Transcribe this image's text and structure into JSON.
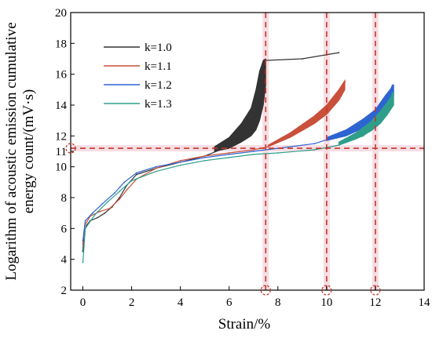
{
  "chart_data": {
    "type": "line",
    "title": "",
    "xlabel": "Strain/%",
    "ylabel_line1": "Logarithm of acoustic emission cumulative",
    "ylabel_line2": "energy count/(mV·s)",
    "xlim": [
      -0.5,
      14
    ],
    "ylim": [
      2,
      20
    ],
    "xticks": [
      0,
      2,
      4,
      6,
      8,
      10,
      12,
      14
    ],
    "yticks": [
      2,
      4,
      6,
      8,
      10,
      12,
      14,
      16,
      18,
      20
    ],
    "yticks_extra": [
      11
    ],
    "legend_position": "top-left",
    "series": [
      {
        "name": "k=1.0",
        "color": "#333333",
        "points": [
          [
            0.0,
            4.5
          ],
          [
            0.05,
            5.8
          ],
          [
            0.15,
            6.2
          ],
          [
            0.3,
            6.5
          ],
          [
            0.6,
            6.7
          ],
          [
            0.9,
            7.0
          ],
          [
            1.2,
            7.4
          ],
          [
            1.5,
            8.0
          ],
          [
            1.8,
            8.8
          ],
          [
            2.2,
            9.5
          ],
          [
            3.0,
            9.9
          ],
          [
            4.0,
            10.3
          ],
          [
            5.0,
            10.7
          ],
          [
            5.8,
            11.2
          ],
          [
            6.4,
            11.8
          ],
          [
            6.9,
            12.6
          ],
          [
            7.1,
            13.3
          ],
          [
            7.25,
            14.3
          ],
          [
            7.4,
            15.3
          ],
          [
            7.45,
            16.2
          ],
          [
            7.5,
            16.9
          ],
          [
            9.0,
            17.0
          ],
          [
            10.5,
            17.4
          ]
        ],
        "band": [
          [
            5.4,
            11.0,
            11.3
          ],
          [
            6.0,
            11.2,
            11.9
          ],
          [
            6.5,
            11.6,
            12.8
          ],
          [
            6.9,
            12.0,
            13.8
          ],
          [
            7.1,
            12.4,
            15.0
          ],
          [
            7.25,
            13.0,
            16.2
          ],
          [
            7.4,
            14.0,
            16.9
          ],
          [
            7.5,
            15.3,
            17.0
          ]
        ]
      },
      {
        "name": "k=1.1",
        "color": "#c9503a",
        "points": [
          [
            0.0,
            5.0
          ],
          [
            0.08,
            6.2
          ],
          [
            0.3,
            6.8
          ],
          [
            0.7,
            7.1
          ],
          [
            1.1,
            7.3
          ],
          [
            1.5,
            7.9
          ],
          [
            1.8,
            8.5
          ],
          [
            2.2,
            9.2
          ],
          [
            3.0,
            9.9
          ],
          [
            4.0,
            10.4
          ],
          [
            5.0,
            10.7
          ],
          [
            6.0,
            10.9
          ],
          [
            7.0,
            11.1
          ],
          [
            7.6,
            11.3
          ],
          [
            8.5,
            12.0
          ],
          [
            9.5,
            13.0
          ],
          [
            10.0,
            13.6
          ],
          [
            10.5,
            14.6
          ],
          [
            10.75,
            15.5
          ]
        ],
        "band": [
          [
            7.6,
            11.3,
            11.4
          ],
          [
            8.5,
            11.9,
            12.2
          ],
          [
            9.5,
            12.8,
            13.3
          ],
          [
            10.0,
            13.4,
            14.0
          ],
          [
            10.5,
            14.3,
            15.0
          ],
          [
            10.75,
            15.0,
            15.6
          ]
        ]
      },
      {
        "name": "k=1.2",
        "color": "#2d64d2",
        "points": [
          [
            0.0,
            5.2
          ],
          [
            0.1,
            6.5
          ],
          [
            0.4,
            7.0
          ],
          [
            0.8,
            7.6
          ],
          [
            1.3,
            8.3
          ],
          [
            1.7,
            9.0
          ],
          [
            2.2,
            9.6
          ],
          [
            3.0,
            10.0
          ],
          [
            4.0,
            10.3
          ],
          [
            5.0,
            10.6
          ],
          [
            6.0,
            10.8
          ],
          [
            7.0,
            11.0
          ],
          [
            8.0,
            11.2
          ],
          [
            9.5,
            11.5
          ],
          [
            10.5,
            12.0
          ],
          [
            11.5,
            12.8
          ],
          [
            12.0,
            13.3
          ],
          [
            12.4,
            14.2
          ],
          [
            12.7,
            15.3
          ]
        ],
        "band": [
          [
            10.0,
            11.7,
            11.9
          ],
          [
            10.8,
            12.0,
            12.4
          ],
          [
            11.5,
            12.5,
            13.1
          ],
          [
            12.0,
            13.0,
            13.7
          ],
          [
            12.4,
            13.8,
            14.6
          ],
          [
            12.75,
            14.6,
            15.3
          ]
        ]
      },
      {
        "name": "k=1.3",
        "color": "#2e9e8a",
        "points": [
          [
            0.0,
            3.8
          ],
          [
            0.1,
            6.0
          ],
          [
            0.5,
            6.9
          ],
          [
            1.0,
            7.7
          ],
          [
            1.5,
            8.4
          ],
          [
            2.0,
            9.1
          ],
          [
            3.0,
            9.7
          ],
          [
            4.0,
            10.1
          ],
          [
            5.0,
            10.4
          ],
          [
            6.0,
            10.6
          ],
          [
            7.0,
            10.8
          ],
          [
            8.0,
            10.9
          ],
          [
            9.5,
            11.1
          ],
          [
            10.5,
            11.4
          ],
          [
            11.5,
            12.0
          ],
          [
            12.0,
            12.6
          ],
          [
            12.4,
            13.4
          ],
          [
            12.7,
            14.8
          ]
        ],
        "band": [
          [
            10.5,
            11.4,
            11.6
          ],
          [
            11.2,
            11.8,
            12.2
          ],
          [
            11.8,
            12.3,
            12.9
          ],
          [
            12.2,
            12.8,
            13.6
          ],
          [
            12.5,
            13.4,
            14.2
          ],
          [
            12.75,
            14.0,
            14.8
          ]
        ]
      }
    ],
    "reference_lines": {
      "color": "#c0392b",
      "horizontal_y": 11.2,
      "vertical_x": [
        7.5,
        10.0,
        12.0
      ]
    },
    "markers": [
      {
        "x": -0.5,
        "y": 11.2
      },
      {
        "x": 7.5,
        "y": 2
      },
      {
        "x": 10.0,
        "y": 2
      },
      {
        "x": 12.0,
        "y": 2
      }
    ]
  }
}
